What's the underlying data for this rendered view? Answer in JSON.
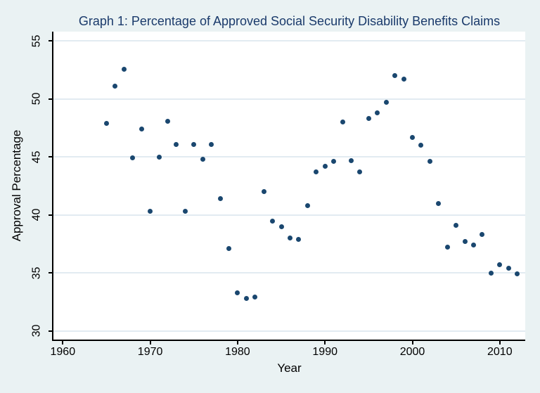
{
  "colors": {
    "background": "#eaf2f3",
    "plot_background": "#ffffff",
    "gridline": "#e2ebf1",
    "marker": "#1a476f",
    "title": "#1a3a6b",
    "axis": "#000000"
  },
  "chart_data": {
    "type": "scatter",
    "title": "Graph 1: Percentage of Approved Social Security Disability Benefits Claims",
    "xlabel": "Year",
    "ylabel": "Approval Percentage",
    "x_ticks": [
      1960,
      1970,
      1980,
      1990,
      2000,
      2010
    ],
    "y_ticks": [
      30,
      35,
      40,
      45,
      50,
      55
    ],
    "xlim": [
      1958.9,
      2013
    ],
    "ylim": [
      29.3,
      55.8
    ],
    "grid": "horizontal-only",
    "legend": "none",
    "marker": "filled-circle",
    "x": [
      1965,
      1966,
      1967,
      1968,
      1969,
      1970,
      1971,
      1972,
      1973,
      1974,
      1975,
      1976,
      1977,
      1978,
      1979,
      1980,
      1981,
      1982,
      1983,
      1984,
      1985,
      1986,
      1987,
      1988,
      1989,
      1990,
      1991,
      1992,
      1993,
      1994,
      1995,
      1996,
      1997,
      1998,
      1999,
      2000,
      2001,
      2002,
      2003,
      2004,
      2005,
      2006,
      2007,
      2008,
      2009,
      2010,
      2011,
      2012
    ],
    "y": [
      47.9,
      51.1,
      52.6,
      44.9,
      47.4,
      40.3,
      45.0,
      48.1,
      46.1,
      40.3,
      46.1,
      44.8,
      46.1,
      41.4,
      37.1,
      33.3,
      32.8,
      32.9,
      42.0,
      39.5,
      39.0,
      38.0,
      37.9,
      40.8,
      43.7,
      44.2,
      44.6,
      48.0,
      44.7,
      43.7,
      48.3,
      48.8,
      49.7,
      52.0,
      51.7,
      46.7,
      46.0,
      44.6,
      41.0,
      37.2,
      39.1,
      37.7,
      37.4,
      38.3,
      35.0,
      35.7,
      35.4,
      34.9
    ]
  }
}
